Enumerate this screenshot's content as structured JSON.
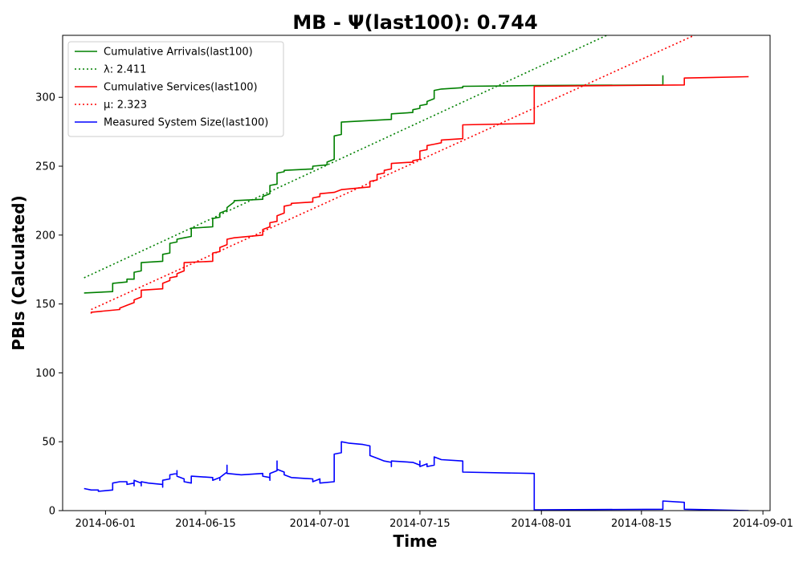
{
  "chart_data": {
    "type": "line",
    "title": "MB -  Ψ(last100): 0.744",
    "xlabel": "Time",
    "ylabel": "PBIs (Calculated)",
    "x_axis_type": "date",
    "xlim": [
      "2014-05-26",
      "2014-09-02"
    ],
    "ylim": [
      0,
      345
    ],
    "grid": false,
    "legend_position": "top-left",
    "x_ticks": [
      "2014-06-01",
      "2014-06-15",
      "2014-07-01",
      "2014-07-15",
      "2014-08-01",
      "2014-08-15",
      "2014-09-01"
    ],
    "y_ticks": [
      0,
      50,
      100,
      150,
      200,
      250,
      300
    ],
    "series": [
      {
        "name": "Cumulative Arrivals(last100)",
        "color": "#008000",
        "style": "solid",
        "points": [
          [
            "2014-05-29",
            158
          ],
          [
            "2014-06-02",
            159
          ],
          [
            "2014-06-02",
            165
          ],
          [
            "2014-06-04",
            166
          ],
          [
            "2014-06-04",
            168
          ],
          [
            "2014-06-05",
            168
          ],
          [
            "2014-06-05",
            173
          ],
          [
            "2014-06-06",
            174
          ],
          [
            "2014-06-06",
            180
          ],
          [
            "2014-06-09",
            181
          ],
          [
            "2014-06-09",
            186
          ],
          [
            "2014-06-10",
            187
          ],
          [
            "2014-06-10",
            194
          ],
          [
            "2014-06-11",
            195
          ],
          [
            "2014-06-11",
            197
          ],
          [
            "2014-06-12",
            198
          ],
          [
            "2014-06-13",
            199
          ],
          [
            "2014-06-13",
            205
          ],
          [
            "2014-06-16",
            206
          ],
          [
            "2014-06-16",
            212
          ],
          [
            "2014-06-17",
            213
          ],
          [
            "2014-06-17",
            216
          ],
          [
            "2014-06-18",
            218
          ],
          [
            "2014-06-18",
            220
          ],
          [
            "2014-06-19",
            224
          ],
          [
            "2014-06-19",
            225
          ],
          [
            "2014-06-23",
            226
          ],
          [
            "2014-06-23",
            228
          ],
          [
            "2014-06-24",
            230
          ],
          [
            "2014-06-24",
            236
          ],
          [
            "2014-06-25",
            237
          ],
          [
            "2014-06-25",
            245
          ],
          [
            "2014-06-26",
            246
          ],
          [
            "2014-06-26",
            247
          ],
          [
            "2014-06-30",
            248
          ],
          [
            "2014-06-30",
            250
          ],
          [
            "2014-07-02",
            251
          ],
          [
            "2014-07-02",
            253
          ],
          [
            "2014-07-03",
            255
          ],
          [
            "2014-07-03",
            272
          ],
          [
            "2014-07-04",
            273
          ],
          [
            "2014-07-04",
            282
          ],
          [
            "2014-07-11",
            284
          ],
          [
            "2014-07-11",
            288
          ],
          [
            "2014-07-14",
            289
          ],
          [
            "2014-07-14",
            291
          ],
          [
            "2014-07-15",
            292
          ],
          [
            "2014-07-15",
            294
          ],
          [
            "2014-07-16",
            295
          ],
          [
            "2014-07-16",
            297
          ],
          [
            "2014-07-17",
            299
          ],
          [
            "2014-07-17",
            305
          ],
          [
            "2014-07-18",
            306
          ],
          [
            "2014-07-21",
            307
          ],
          [
            "2014-07-21",
            308
          ],
          [
            "2014-07-31",
            308.5
          ],
          [
            "2014-08-18",
            309
          ],
          [
            "2014-08-18",
            316
          ]
        ]
      },
      {
        "name": "λ: 2.411",
        "color": "#008000",
        "style": "dotted",
        "points": [
          [
            "2014-05-29",
            169
          ],
          [
            "2014-09-02",
            400
          ]
        ]
      },
      {
        "name": "Cumulative Services(last100)",
        "color": "#ff0000",
        "style": "solid",
        "points": [
          [
            "2014-05-30",
            143
          ],
          [
            "2014-05-30",
            144
          ],
          [
            "2014-06-03",
            146
          ],
          [
            "2014-06-03",
            147
          ],
          [
            "2014-06-04",
            149
          ],
          [
            "2014-06-05",
            151
          ],
          [
            "2014-06-05",
            153
          ],
          [
            "2014-06-06",
            155
          ],
          [
            "2014-06-06",
            160
          ],
          [
            "2014-06-09",
            161
          ],
          [
            "2014-06-09",
            165
          ],
          [
            "2014-06-10",
            167
          ],
          [
            "2014-06-10",
            169
          ],
          [
            "2014-06-11",
            170
          ],
          [
            "2014-06-11",
            172
          ],
          [
            "2014-06-12",
            174
          ],
          [
            "2014-06-12",
            180
          ],
          [
            "2014-06-16",
            181
          ],
          [
            "2014-06-16",
            187
          ],
          [
            "2014-06-17",
            188
          ],
          [
            "2014-06-17",
            191
          ],
          [
            "2014-06-18",
            193
          ],
          [
            "2014-06-18",
            197
          ],
          [
            "2014-06-19",
            198
          ],
          [
            "2014-06-23",
            200
          ],
          [
            "2014-06-23",
            204
          ],
          [
            "2014-06-24",
            206
          ],
          [
            "2014-06-24",
            209
          ],
          [
            "2014-06-25",
            210
          ],
          [
            "2014-06-25",
            214
          ],
          [
            "2014-06-26",
            216
          ],
          [
            "2014-06-26",
            221
          ],
          [
            "2014-06-27",
            222
          ],
          [
            "2014-06-27",
            223
          ],
          [
            "2014-06-30",
            224
          ],
          [
            "2014-06-30",
            227
          ],
          [
            "2014-07-01",
            228
          ],
          [
            "2014-07-01",
            230
          ],
          [
            "2014-07-03",
            231
          ],
          [
            "2014-07-04",
            233
          ],
          [
            "2014-07-08",
            235
          ],
          [
            "2014-07-08",
            239
          ],
          [
            "2014-07-09",
            240
          ],
          [
            "2014-07-09",
            244
          ],
          [
            "2014-07-10",
            245
          ],
          [
            "2014-07-10",
            247
          ],
          [
            "2014-07-11",
            248
          ],
          [
            "2014-07-11",
            252
          ],
          [
            "2014-07-14",
            253
          ],
          [
            "2014-07-14",
            254
          ],
          [
            "2014-07-15",
            255
          ],
          [
            "2014-07-15",
            261
          ],
          [
            "2014-07-16",
            262
          ],
          [
            "2014-07-16",
            265
          ],
          [
            "2014-07-17",
            266
          ],
          [
            "2014-07-18",
            267
          ],
          [
            "2014-07-18",
            269
          ],
          [
            "2014-07-21",
            270
          ],
          [
            "2014-07-21",
            280
          ],
          [
            "2014-07-31",
            281
          ],
          [
            "2014-07-31",
            308
          ],
          [
            "2014-08-21",
            309
          ],
          [
            "2014-08-21",
            314
          ],
          [
            "2014-08-30",
            315
          ]
        ]
      },
      {
        "name": "μ: 2.323",
        "color": "#ff0000",
        "style": "dotted",
        "points": [
          [
            "2014-05-30",
            146
          ],
          [
            "2014-09-02",
            370
          ]
        ]
      },
      {
        "name": "Measured System Size(last100)",
        "color": "#0000ff",
        "style": "solid",
        "points": [
          [
            "2014-05-29",
            16
          ],
          [
            "2014-05-30",
            15
          ],
          [
            "2014-05-31",
            15
          ],
          [
            "2014-05-31",
            14
          ],
          [
            "2014-06-02",
            15
          ],
          [
            "2014-06-02",
            20
          ],
          [
            "2014-06-03",
            21
          ],
          [
            "2014-06-04",
            21
          ],
          [
            "2014-06-04",
            19
          ],
          [
            "2014-06-05",
            20
          ],
          [
            "2014-06-05",
            18
          ],
          [
            "2014-06-05",
            22
          ],
          [
            "2014-06-06",
            20
          ],
          [
            "2014-06-06",
            18
          ],
          [
            "2014-06-06",
            21
          ],
          [
            "2014-06-07",
            20
          ],
          [
            "2014-06-09",
            19
          ],
          [
            "2014-06-09",
            17
          ],
          [
            "2014-06-09",
            22
          ],
          [
            "2014-06-10",
            23
          ],
          [
            "2014-06-10",
            26
          ],
          [
            "2014-06-11",
            27
          ],
          [
            "2014-06-11",
            29
          ],
          [
            "2014-06-11",
            25
          ],
          [
            "2014-06-12",
            23
          ],
          [
            "2014-06-12",
            21
          ],
          [
            "2014-06-13",
            20
          ],
          [
            "2014-06-13",
            25
          ],
          [
            "2014-06-16",
            24
          ],
          [
            "2014-06-16",
            22
          ],
          [
            "2014-06-17",
            24
          ],
          [
            "2014-06-17",
            22
          ],
          [
            "2014-06-17",
            24
          ],
          [
            "2014-06-18",
            28
          ],
          [
            "2014-06-18",
            33
          ],
          [
            "2014-06-18",
            27
          ],
          [
            "2014-06-20",
            26
          ],
          [
            "2014-06-23",
            27
          ],
          [
            "2014-06-23",
            25
          ],
          [
            "2014-06-24",
            24
          ],
          [
            "2014-06-24",
            22
          ],
          [
            "2014-06-24",
            27
          ],
          [
            "2014-06-25",
            29
          ],
          [
            "2014-06-25",
            36
          ],
          [
            "2014-06-25",
            30
          ],
          [
            "2014-06-26",
            28
          ],
          [
            "2014-06-26",
            26
          ],
          [
            "2014-06-27",
            24
          ],
          [
            "2014-06-30",
            23
          ],
          [
            "2014-06-30",
            21
          ],
          [
            "2014-07-01",
            23
          ],
          [
            "2014-07-01",
            20
          ],
          [
            "2014-07-03",
            21
          ],
          [
            "2014-07-03",
            41
          ],
          [
            "2014-07-04",
            42
          ],
          [
            "2014-07-04",
            50
          ],
          [
            "2014-07-05",
            49
          ],
          [
            "2014-07-07",
            48
          ],
          [
            "2014-07-08",
            47
          ],
          [
            "2014-07-08",
            40
          ],
          [
            "2014-07-09",
            38
          ],
          [
            "2014-07-10",
            36
          ],
          [
            "2014-07-11",
            35
          ],
          [
            "2014-07-11",
            32
          ],
          [
            "2014-07-11",
            36
          ],
          [
            "2014-07-14",
            35
          ],
          [
            "2014-07-15",
            33
          ],
          [
            "2014-07-15",
            36
          ],
          [
            "2014-07-15",
            32
          ],
          [
            "2014-07-16",
            34
          ],
          [
            "2014-07-16",
            32
          ],
          [
            "2014-07-17",
            33
          ],
          [
            "2014-07-17",
            39
          ],
          [
            "2014-07-18",
            37
          ],
          [
            "2014-07-21",
            36
          ],
          [
            "2014-07-21",
            28
          ],
          [
            "2014-07-31",
            27
          ],
          [
            "2014-07-31",
            0.5
          ],
          [
            "2014-08-18",
            1
          ],
          [
            "2014-08-18",
            7
          ],
          [
            "2014-08-21",
            6
          ],
          [
            "2014-08-21",
            1
          ],
          [
            "2014-08-30",
            0
          ]
        ]
      }
    ]
  }
}
